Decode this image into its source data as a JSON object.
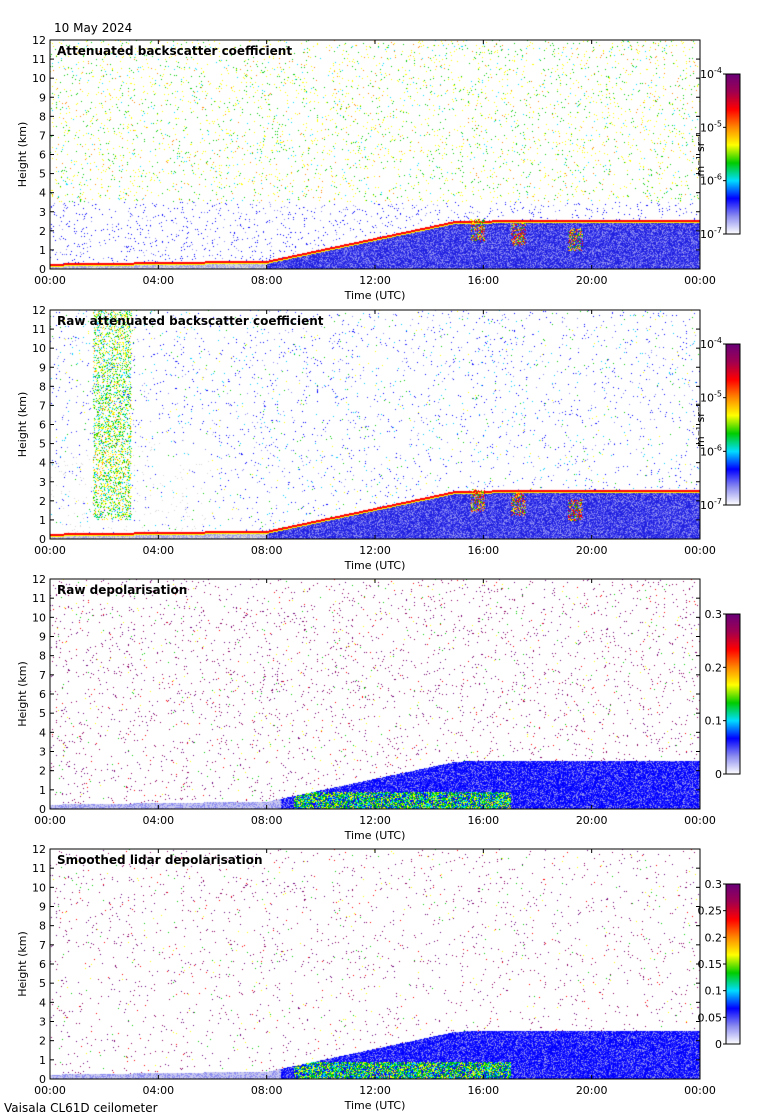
{
  "header": {
    "date": "10 May 2024"
  },
  "footer": {
    "instrument": "Vaisala CL61D ceilometer"
  },
  "colors": {
    "scale": [
      "#ffffff",
      "#8c8cf0",
      "#0000ff",
      "#00ddff",
      "#00cc00",
      "#ffff00",
      "#ff8800",
      "#ff0000",
      "#a00050",
      "#6a0078"
    ],
    "axis": "#000000",
    "noise_gray": "#cccccc"
  },
  "chart_data": [
    {
      "type": "heatmap",
      "panel": "attenuated-backscatter",
      "title": "Attenuated backscatter coefficient",
      "xlabel": "Time (UTC)",
      "ylabel": "Height (km)",
      "xticks": [
        "00:00",
        "04:00",
        "08:00",
        "12:00",
        "16:00",
        "20:00",
        "00:00"
      ],
      "xlim_hours": [
        0,
        24
      ],
      "ylim": [
        0,
        12
      ],
      "yticks": [
        0,
        1,
        2,
        3,
        4,
        5,
        6,
        7,
        8,
        9,
        10,
        11,
        12
      ],
      "scale": "log",
      "colorbar_label": "m⁻¹ sr⁻¹",
      "colorbar_ticks": [
        {
          "mantissa": "10",
          "exp": "-4",
          "value": 0.0001
        },
        {
          "mantissa": "10",
          "exp": "-5",
          "value": 1e-05
        },
        {
          "mantissa": "10",
          "exp": "-6",
          "value": 1e-06
        },
        {
          "mantissa": "10",
          "exp": "-7",
          "value": 1e-07
        }
      ]
    },
    {
      "type": "heatmap",
      "panel": "raw-attenuated-backscatter",
      "title": "Raw attenuated backscatter coefficient",
      "xlabel": "Time (UTC)",
      "ylabel": "Height (km)",
      "xticks": [
        "00:00",
        "04:00",
        "08:00",
        "12:00",
        "16:00",
        "20:00",
        "00:00"
      ],
      "xlim_hours": [
        0,
        24
      ],
      "ylim": [
        0,
        12
      ],
      "yticks": [
        0,
        1,
        2,
        3,
        4,
        5,
        6,
        7,
        8,
        9,
        10,
        11,
        12
      ],
      "scale": "log",
      "colorbar_label": "m⁻¹ sr⁻¹",
      "colorbar_ticks": [
        {
          "mantissa": "10",
          "exp": "-4",
          "value": 0.0001
        },
        {
          "mantissa": "10",
          "exp": "-5",
          "value": 1e-05
        },
        {
          "mantissa": "10",
          "exp": "-6",
          "value": 1e-06
        },
        {
          "mantissa": "10",
          "exp": "-7",
          "value": 1e-07
        }
      ]
    },
    {
      "type": "heatmap",
      "panel": "raw-depolarisation",
      "title": "Raw depolarisation",
      "xlabel": "Time (UTC)",
      "ylabel": "Height (km)",
      "xticks": [
        "00:00",
        "04:00",
        "08:00",
        "12:00",
        "16:00",
        "20:00",
        "00:00"
      ],
      "xlim_hours": [
        0,
        24
      ],
      "ylim": [
        0,
        12
      ],
      "yticks": [
        0,
        1,
        2,
        3,
        4,
        5,
        6,
        7,
        8,
        9,
        10,
        11,
        12
      ],
      "scale": "linear",
      "clim": [
        0,
        0.3
      ],
      "colorbar_label": "",
      "colorbar_ticks": [
        {
          "label": "0.3",
          "value": 0.3
        },
        {
          "label": "0.2",
          "value": 0.2
        },
        {
          "label": "0.1",
          "value": 0.1
        },
        {
          "label": "0",
          "value": 0
        }
      ]
    },
    {
      "type": "heatmap",
      "panel": "smoothed-lidar-depolarisation",
      "title": "Smoothed lidar depolarisation",
      "xlabel": "Time (UTC)",
      "ylabel": "Height (km)",
      "xticks": [
        "00:00",
        "04:00",
        "08:00",
        "12:00",
        "16:00",
        "20:00",
        "00:00"
      ],
      "xlim_hours": [
        0,
        24
      ],
      "ylim": [
        0,
        12
      ],
      "yticks": [
        0,
        1,
        2,
        3,
        4,
        5,
        6,
        7,
        8,
        9,
        10,
        11,
        12
      ],
      "scale": "linear",
      "clim": [
        0,
        0.3
      ],
      "colorbar_label": "",
      "colorbar_ticks": [
        {
          "label": "0.3",
          "value": 0.3
        },
        {
          "label": "0.25",
          "value": 0.25
        },
        {
          "label": "0.2",
          "value": 0.2
        },
        {
          "label": "0.15",
          "value": 0.15
        },
        {
          "label": "0.1",
          "value": 0.1
        },
        {
          "label": "0.05",
          "value": 0.05
        },
        {
          "label": "0",
          "value": 0
        }
      ]
    }
  ]
}
